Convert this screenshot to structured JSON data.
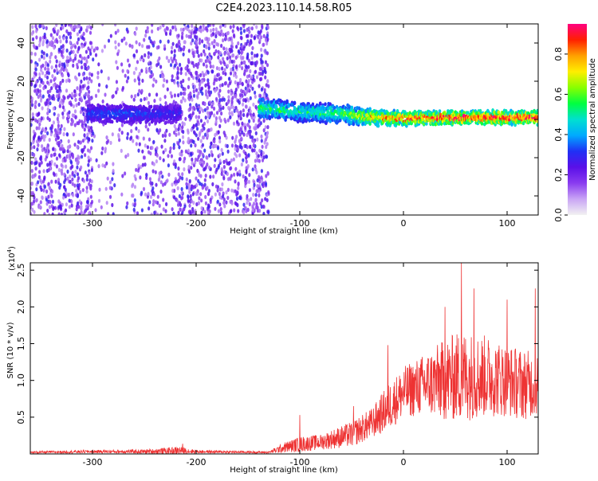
{
  "figure_title": "C2E4.2023.110.14.58.R05",
  "colors": {
    "snr_line": "#ee3333",
    "colormap": [
      "#f2f2f2",
      "#c9a5f5",
      "#8a3cf0",
      "#5a10e8",
      "#2030f5",
      "#00aaff",
      "#00e0d0",
      "#00ff40",
      "#88ff00",
      "#ffee00",
      "#ffa000",
      "#ff2000",
      "#ff0080"
    ]
  },
  "chart_data": [
    {
      "type": "heatmap",
      "title": "",
      "xlabel": "Height of straight line (km)",
      "ylabel": "Frequency (Hz)",
      "xlim": [
        -360,
        130
      ],
      "ylim": [
        -50,
        50
      ],
      "x_ticks": [
        -300,
        -200,
        -100,
        0,
        100
      ],
      "y_ticks": [
        -40,
        -20,
        0,
        20,
        40
      ],
      "x_tick_labels": [
        "-300",
        "-200",
        "-100",
        "0",
        "100"
      ],
      "y_tick_labels": [
        "-40",
        "-20",
        "0",
        "20",
        "40"
      ],
      "colorbar": {
        "label": "Normalized spectral amplitude",
        "range": [
          0,
          0.95
        ],
        "ticks": [
          0.0,
          0.2,
          0.4,
          0.6,
          0.8
        ],
        "tick_labels": [
          "0.0",
          "0.2",
          "0.4",
          "0.6",
          "0.8"
        ]
      },
      "features": {
        "scatter_regions": [
          {
            "x_range": [
              -360,
              -300
            ],
            "density": "high"
          },
          {
            "x_range": [
              -300,
              -260
            ],
            "density": "low"
          },
          {
            "x_range": [
              -260,
              -218
            ],
            "density": "medium"
          },
          {
            "x_range": [
              -218,
              -130
            ],
            "density": "high"
          }
        ],
        "signal_band": [
          {
            "x": -305,
            "freq": 3,
            "width": 8,
            "amplitude": 0.25
          },
          {
            "x": -260,
            "freq": 3,
            "width": 8,
            "amplitude": 0.25
          },
          {
            "x": -218,
            "freq": 3,
            "width": 8,
            "amplitude": 0.2
          },
          {
            "x": -215,
            "freq": 0,
            "width": 0,
            "amplitude": 0
          },
          {
            "x": -140,
            "freq": 6,
            "width": 9,
            "amplitude": 0.5
          },
          {
            "x": -100,
            "freq": 4,
            "width": 9,
            "amplitude": 0.45
          },
          {
            "x": -60,
            "freq": 3,
            "width": 9,
            "amplitude": 0.5
          },
          {
            "x": -30,
            "freq": 1,
            "width": 7,
            "amplitude": 0.75
          },
          {
            "x": 0,
            "freq": 0.5,
            "width": 6,
            "amplitude": 0.85
          },
          {
            "x": 60,
            "freq": 1,
            "width": 6,
            "amplitude": 0.9
          },
          {
            "x": 130,
            "freq": 1,
            "width": 6,
            "amplitude": 0.9
          }
        ]
      }
    },
    {
      "type": "line",
      "title": "",
      "xlabel": "Height of straight line (km)",
      "ylabel": "SNR (10 * v/v)",
      "y_multiplier_label": "(x10",
      "y_multiplier_exponent": "4",
      "y_multiplier_close": ")",
      "xlim": [
        -360,
        130
      ],
      "ylim": [
        0,
        2.6
      ],
      "x_ticks": [
        -300,
        -200,
        -100,
        0,
        100
      ],
      "y_ticks": [
        0.5,
        1.0,
        1.5,
        2.0,
        2.5
      ],
      "x_tick_labels": [
        "-300",
        "-200",
        "-100",
        "0",
        "100"
      ],
      "y_tick_labels": [
        "0.5",
        "1.0",
        "1.5",
        "2.0",
        "2.5"
      ],
      "series": [
        {
          "envelope": {
            "x": [
              -360,
              -300,
              -250,
              -215,
              -200,
              -130,
              -115,
              -100,
              -80,
              -50,
              -30,
              -15,
              0,
              20,
              40,
              55,
              80,
              100,
              115,
              130
            ],
            "base": [
              0.02,
              0.03,
              0.03,
              0.04,
              0.03,
              0.02,
              0.08,
              0.12,
              0.15,
              0.25,
              0.4,
              0.6,
              0.8,
              0.9,
              0.95,
              1.0,
              1.0,
              0.95,
              0.9,
              0.9
            ],
            "spread": [
              0.02,
              0.03,
              0.04,
              0.08,
              0.03,
              0.02,
              0.1,
              0.15,
              0.15,
              0.25,
              0.3,
              0.45,
              0.5,
              0.6,
              0.8,
              0.9,
              0.8,
              0.7,
              0.7,
              0.6
            ]
          },
          "peaks": [
            {
              "x": -213,
              "y": 0.14
            },
            {
              "x": -100,
              "y": 0.53
            },
            {
              "x": -48,
              "y": 0.65
            },
            {
              "x": -15,
              "y": 1.48
            },
            {
              "x": 40,
              "y": 2.0
            },
            {
              "x": 56,
              "y": 2.6
            },
            {
              "x": 68,
              "y": 2.25
            },
            {
              "x": 100,
              "y": 2.1
            },
            {
              "x": 127,
              "y": 2.25
            }
          ]
        }
      ]
    }
  ]
}
